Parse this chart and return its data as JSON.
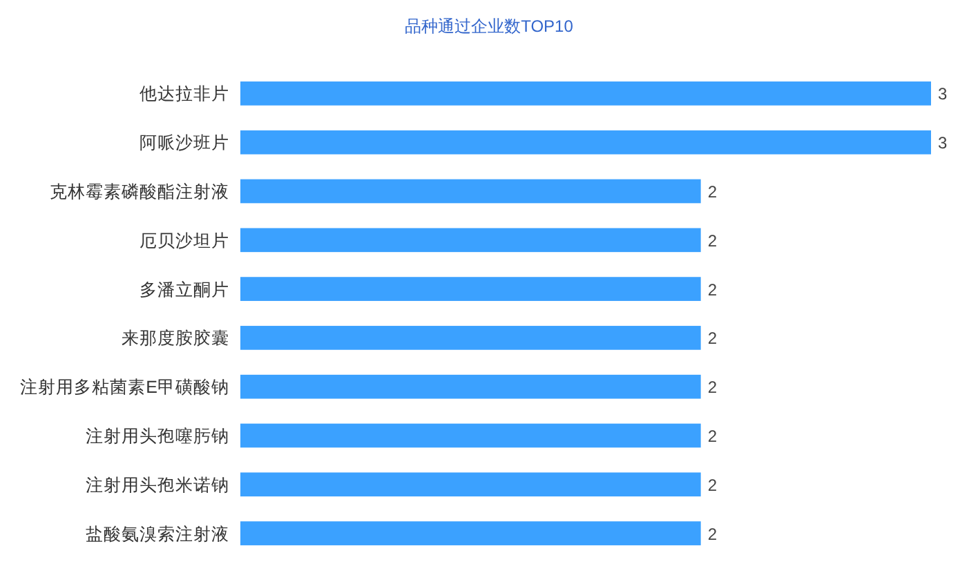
{
  "chart_data": {
    "type": "bar",
    "orientation": "horizontal",
    "title": "品种通过企业数TOP10",
    "categories": [
      "他达拉非片",
      "阿哌沙班片",
      "克林霉素磷酸酯注射液",
      "厄贝沙坦片",
      "多潘立酮片",
      "来那度胺胶囊",
      "注射用多粘菌素E甲磺酸钠",
      "注射用头孢噻肟钠",
      "注射用头孢米诺钠",
      "盐酸氨溴索注射液"
    ],
    "values": [
      3,
      3,
      2,
      2,
      2,
      2,
      2,
      2,
      2,
      2
    ],
    "color": "#3ba1ff",
    "data_labels": true
  }
}
